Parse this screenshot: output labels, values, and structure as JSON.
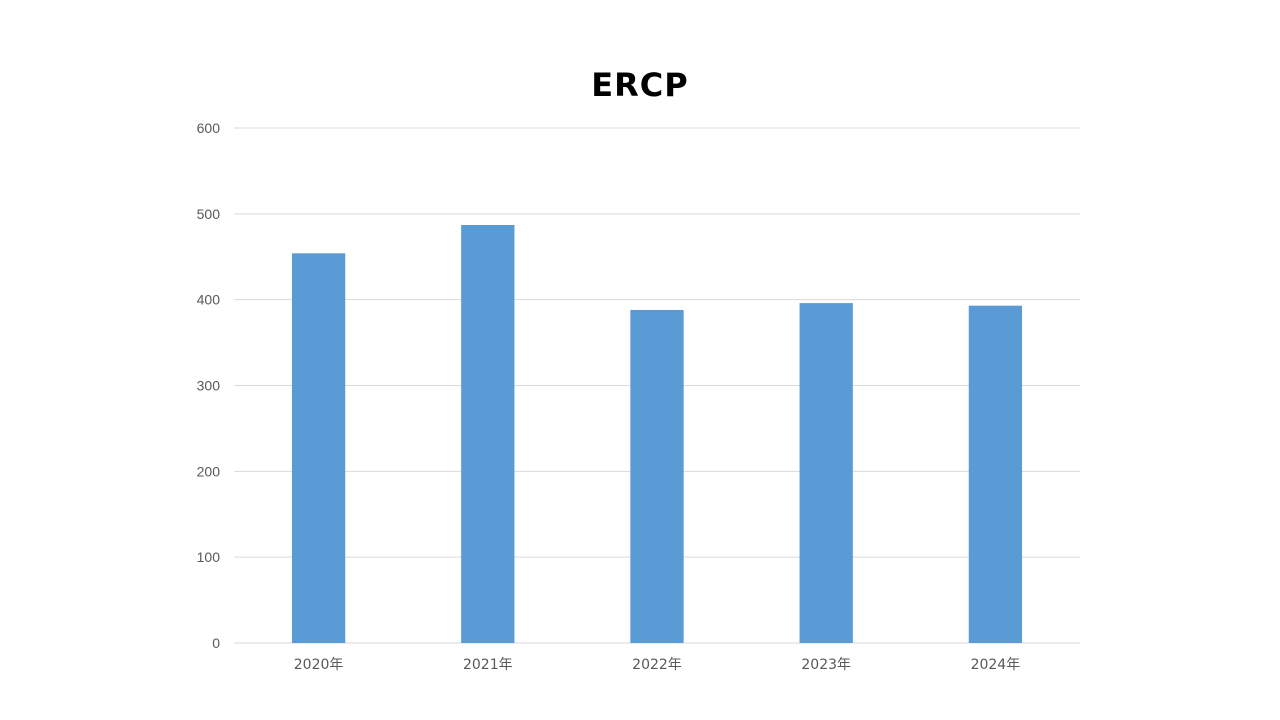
{
  "chart_data": {
    "type": "bar",
    "title": "ERCP",
    "categories": [
      "2020年",
      "2021年",
      "2022年",
      "2023年",
      "2024年"
    ],
    "values": [
      454,
      487,
      388,
      396,
      393
    ],
    "ylim": [
      0,
      600
    ],
    "yticks": [
      0,
      100,
      200,
      300,
      400,
      500,
      600
    ],
    "xlabel": "",
    "ylabel": "",
    "grid": true,
    "bar_color": "#5B9BD5",
    "grid_color": "#D9D9D9",
    "label_color": "#595959"
  }
}
